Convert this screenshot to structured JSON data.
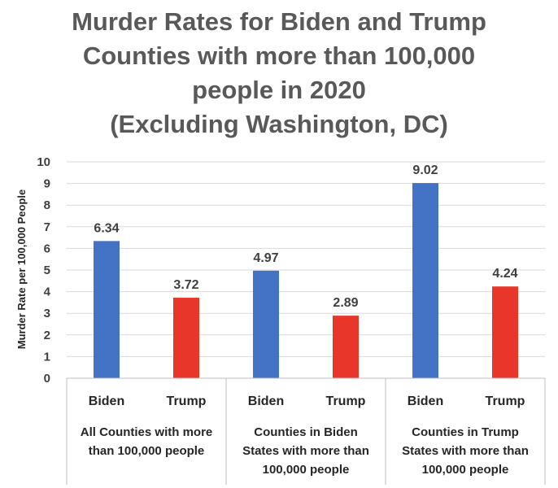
{
  "chart_data": {
    "type": "bar",
    "title_lines": [
      "Murder Rates for Biden and Trump",
      "Counties with more than 100,000",
      "people in 2020",
      "(Excluding Washington, DC)"
    ],
    "ylabel": "Murder Rate per 100,000 People",
    "xlabel": "",
    "ylim": [
      0,
      10
    ],
    "yticks": [
      "0",
      "1",
      "2",
      "3",
      "4",
      "5",
      "6",
      "7",
      "8",
      "9",
      "10"
    ],
    "grid": true,
    "groups": [
      {
        "label_lines": [
          "All Counties with more",
          "than 100,000 people"
        ],
        "bars": [
          {
            "category": "Biden",
            "value": 6.34,
            "label": "6.34",
            "color": "#4472C4"
          },
          {
            "category": "Trump",
            "value": 3.72,
            "label": "3.72",
            "color": "#E8372A"
          }
        ]
      },
      {
        "label_lines": [
          "Counties in Biden",
          "States with more than",
          "100,000 people"
        ],
        "bars": [
          {
            "category": "Biden",
            "value": 4.97,
            "label": "4.97",
            "color": "#4472C4"
          },
          {
            "category": "Trump",
            "value": 2.89,
            "label": "2.89",
            "color": "#E8372A"
          }
        ]
      },
      {
        "label_lines": [
          "Counties in Trump",
          "States with more than",
          "100,000 people"
        ],
        "bars": [
          {
            "category": "Biden",
            "value": 9.02,
            "label": "9.02",
            "color": "#4472C4"
          },
          {
            "category": "Trump",
            "value": 4.24,
            "label": "4.24",
            "color": "#E8372A"
          }
        ]
      }
    ]
  }
}
